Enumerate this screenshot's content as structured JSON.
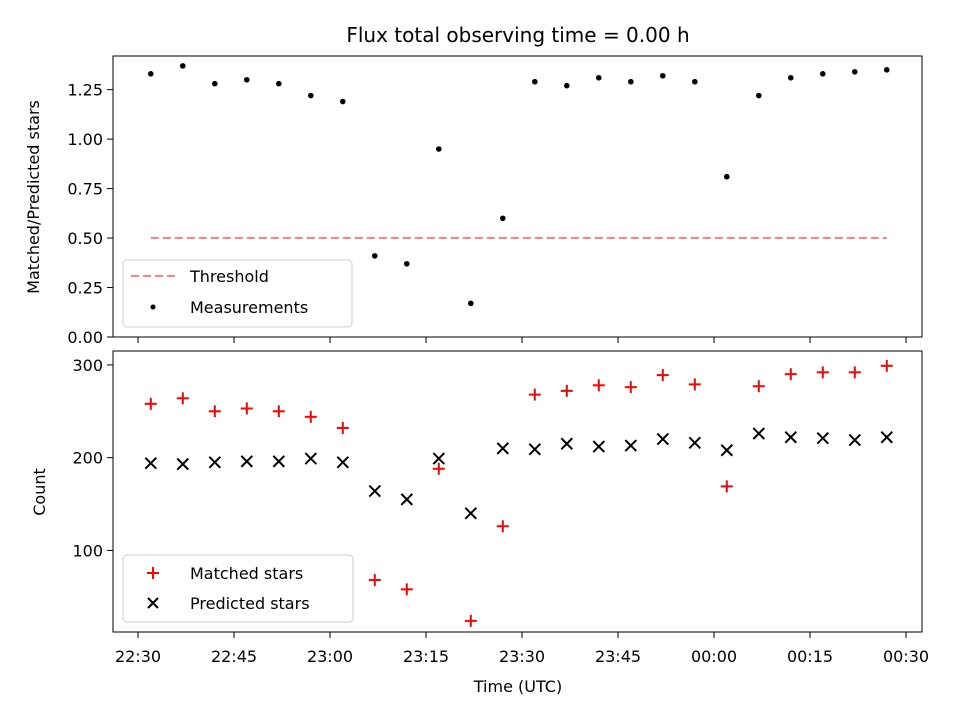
{
  "chart_data": [
    {
      "type": "scatter",
      "title": "Flux total observing time = 0.00 h",
      "xlabel": "",
      "ylabel": "Matched/Predicted stars",
      "ylim": [
        0,
        1.42
      ],
      "yticks": [
        "0.00",
        "0.25",
        "0.50",
        "0.75",
        "1.00",
        "1.25"
      ],
      "threshold": {
        "name": "Threshold",
        "value": 0.5,
        "x_start": "22:32",
        "x_end": "00:27",
        "color": "#ff8080"
      },
      "series": [
        {
          "name": "Measurements",
          "color": "#000000",
          "marker": "dot",
          "x": [
            "22:32",
            "22:37",
            "22:42",
            "22:47",
            "22:52",
            "22:57",
            "23:02",
            "23:07",
            "23:12",
            "23:17",
            "23:22",
            "23:27",
            "23:32",
            "23:37",
            "23:42",
            "23:47",
            "23:52",
            "23:57",
            "00:02",
            "00:07",
            "00:12",
            "00:17",
            "00:22",
            "00:27"
          ],
          "values": [
            1.33,
            1.37,
            1.28,
            1.3,
            1.28,
            1.22,
            1.19,
            0.41,
            0.37,
            0.95,
            0.17,
            0.6,
            1.29,
            1.27,
            1.31,
            1.29,
            1.32,
            1.29,
            0.81,
            1.22,
            1.31,
            1.33,
            1.34,
            1.35
          ]
        }
      ]
    },
    {
      "type": "scatter",
      "title": "",
      "xlabel": "Time (UTC)",
      "ylabel": "Count",
      "ylim": [
        12,
        315
      ],
      "yticks": [
        "100",
        "200",
        "300"
      ],
      "xticks": [
        "22:30",
        "22:45",
        "23:00",
        "23:15",
        "23:30",
        "23:45",
        "00:00",
        "00:15",
        "00:30"
      ],
      "series": [
        {
          "name": "Matched stars",
          "color": "#ff0000",
          "marker": "plus",
          "x": [
            "22:32",
            "22:37",
            "22:42",
            "22:47",
            "22:52",
            "22:57",
            "23:02",
            "23:07",
            "23:12",
            "23:17",
            "23:22",
            "23:27",
            "23:32",
            "23:37",
            "23:42",
            "23:47",
            "23:52",
            "23:57",
            "00:02",
            "00:07",
            "00:12",
            "00:17",
            "00:22",
            "00:27"
          ],
          "values": [
            258,
            264,
            250,
            253,
            250,
            244,
            232,
            68,
            58,
            188,
            24,
            126,
            268,
            272,
            278,
            276,
            289,
            279,
            169,
            277,
            290,
            292,
            292,
            299
          ]
        },
        {
          "name": "Predicted stars",
          "color": "#000000",
          "marker": "x",
          "x": [
            "22:32",
            "22:37",
            "22:42",
            "22:47",
            "22:52",
            "22:57",
            "23:02",
            "23:07",
            "23:12",
            "23:17",
            "23:22",
            "23:27",
            "23:32",
            "23:37",
            "23:42",
            "23:47",
            "23:52",
            "23:57",
            "00:02",
            "00:07",
            "00:12",
            "00:17",
            "00:22",
            "00:27"
          ],
          "values": [
            194,
            193,
            195,
            196,
            196,
            199,
            195,
            164,
            155,
            199,
            140,
            210,
            209,
            215,
            212,
            213,
            220,
            216,
            208,
            226,
            222,
            221,
            219,
            222
          ]
        }
      ]
    }
  ]
}
